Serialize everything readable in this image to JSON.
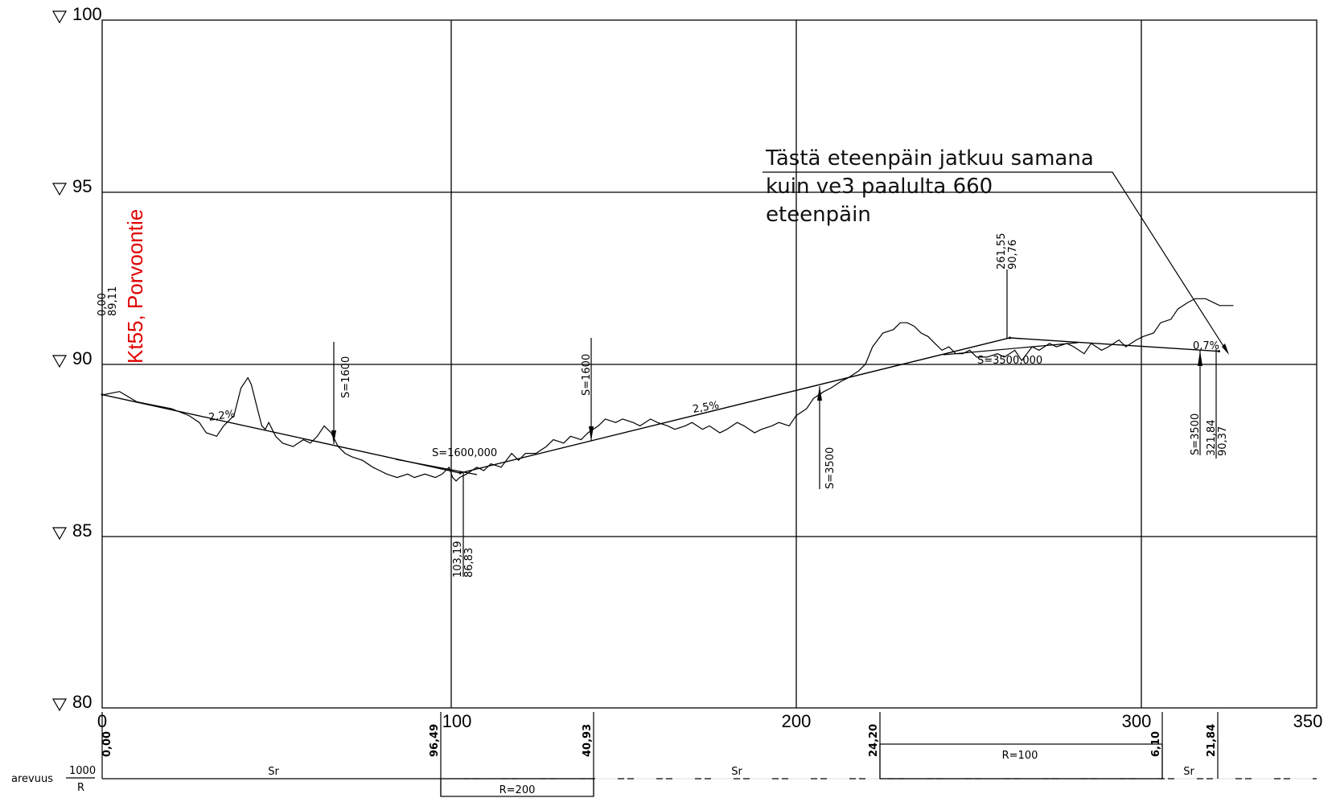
{
  "road_label": "Kt55, Porvoontie",
  "annotation": {
    "lines": [
      "Tästä eteenpäin jatkuu samana",
      "kuin ve3 paalulta 660",
      "eteenpäin"
    ]
  },
  "elevation_labels": [
    "100",
    "95",
    "90",
    "85",
    "80"
  ],
  "station_labels": [
    "0",
    "100",
    "200",
    "300",
    "350"
  ],
  "start_point": {
    "station": "0,00",
    "elevation": "89,11"
  },
  "low_point": {
    "station": "103,19",
    "elevation": "86,83"
  },
  "high_point": {
    "station": "261,55",
    "elevation": "90,76"
  },
  "end_point": {
    "station": "321,84",
    "elevation": "90,37"
  },
  "grades": [
    "2,2%",
    "2,5%",
    "0,7%"
  ],
  "curve_labels": [
    "S=1600",
    "S=1600,000",
    "S=1600",
    "S=3500",
    "S=3500,000",
    "S=3500"
  ],
  "tangent_stations": [
    "0,00",
    "96,49",
    "40,93",
    "24,20",
    "6,10",
    "21,84"
  ],
  "horizontal": {
    "legend_word": "arevuus",
    "legend_top": "1000",
    "legend_bottom": "R",
    "sr_labels": [
      "Sr",
      "Sr",
      "Sr"
    ],
    "radii": [
      "R=200",
      "R=100"
    ]
  },
  "chart_data": {
    "type": "line",
    "xlim": [
      0,
      350
    ],
    "ylim": [
      80,
      100
    ],
    "xticks": [
      0,
      100,
      200,
      300,
      350
    ],
    "yticks": [
      80,
      85,
      90,
      95,
      100
    ],
    "grid": true,
    "series": [
      {
        "role": "design-grade",
        "x": [
          0,
          103.19,
          261.55,
          321.84
        ],
        "y": [
          89.11,
          86.83,
          90.76,
          90.37
        ]
      },
      {
        "role": "existing-ground",
        "x": [
          0,
          5,
          10,
          15,
          20,
          25,
          28,
          30,
          33,
          35,
          38,
          40,
          42,
          43,
          44,
          45,
          46,
          47,
          48,
          50,
          52,
          55,
          58,
          60,
          62,
          64,
          66,
          68,
          70,
          72,
          75,
          78,
          80,
          82,
          85,
          88,
          90,
          93,
          96,
          98,
          100,
          101,
          102,
          103,
          105,
          108,
          110,
          112,
          115,
          118,
          120,
          122,
          125,
          128,
          130,
          133,
          135,
          138,
          140,
          143,
          145,
          148,
          150,
          153,
          155,
          158,
          160,
          163,
          165,
          168,
          170,
          173,
          175,
          178,
          180,
          183,
          185,
          188,
          190,
          193,
          195,
          198,
          200,
          203,
          205,
          208,
          210,
          213,
          215,
          218,
          220,
          222,
          225,
          228,
          230,
          232,
          234,
          236,
          238,
          240,
          242,
          244,
          246,
          248,
          250,
          252,
          255,
          258,
          260,
          263,
          265,
          268,
          270,
          273,
          275,
          278,
          280,
          283,
          285,
          288,
          290,
          293,
          295,
          298,
          300,
          303,
          305,
          308,
          310,
          313,
          315,
          318,
          320,
          322,
          324,
          326
        ],
        "y": [
          89.1,
          89.2,
          88.9,
          88.8,
          88.7,
          88.5,
          88.3,
          88.0,
          87.9,
          88.2,
          88.5,
          89.3,
          89.6,
          89.4,
          89.0,
          88.6,
          88.2,
          88.1,
          88.3,
          87.9,
          87.7,
          87.6,
          87.8,
          87.7,
          87.9,
          88.2,
          88.0,
          87.6,
          87.4,
          87.3,
          87.2,
          87.0,
          86.9,
          86.8,
          86.7,
          86.8,
          86.7,
          86.8,
          86.7,
          86.8,
          87.0,
          86.7,
          86.6,
          86.7,
          86.8,
          87.0,
          86.9,
          87.1,
          87.0,
          87.4,
          87.2,
          87.4,
          87.4,
          87.6,
          87.8,
          87.7,
          87.9,
          87.8,
          88.0,
          88.2,
          88.4,
          88.3,
          88.4,
          88.3,
          88.2,
          88.4,
          88.3,
          88.2,
          88.1,
          88.2,
          88.3,
          88.1,
          88.2,
          88.0,
          88.1,
          88.3,
          88.2,
          88.0,
          88.1,
          88.2,
          88.3,
          88.2,
          88.5,
          88.7,
          89.0,
          89.2,
          89.3,
          89.5,
          89.6,
          89.8,
          90.0,
          90.5,
          90.9,
          91.0,
          91.2,
          91.2,
          91.1,
          90.9,
          90.8,
          90.6,
          90.4,
          90.5,
          90.3,
          90.3,
          90.4,
          90.2,
          90.2,
          90.3,
          90.2,
          90.4,
          90.1,
          90.5,
          90.4,
          90.6,
          90.5,
          90.6,
          90.5,
          90.3,
          90.6,
          90.4,
          90.5,
          90.7,
          90.5,
          90.7,
          90.8,
          90.9,
          91.2,
          91.3,
          91.6,
          91.8,
          91.9,
          91.9,
          91.8,
          91.7,
          91.7,
          91.7
        ]
      }
    ]
  }
}
